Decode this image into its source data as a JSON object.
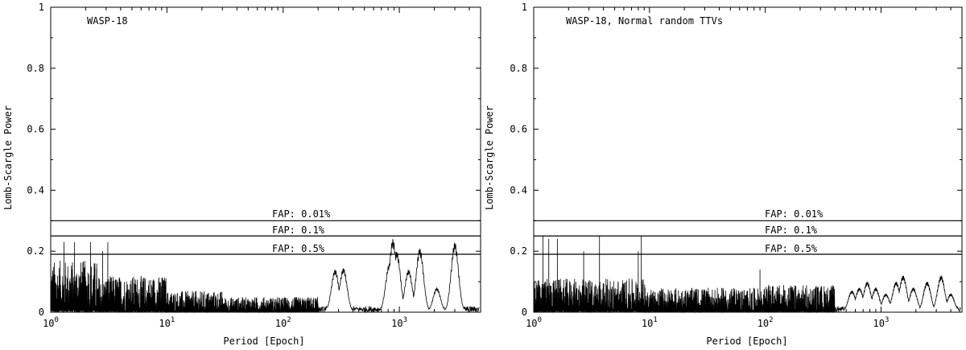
{
  "chart_data": [
    {
      "type": "line",
      "annotation": "WASP-18",
      "xlabel": "Period [Epoch]",
      "ylabel": "Lomb-Scargle Power",
      "xscale": "log",
      "xlim": [
        1,
        5000
      ],
      "ylim": [
        0,
        1
      ],
      "x_ticks": [
        1,
        10,
        100,
        1000
      ],
      "x_tick_labels": [
        {
          "base": "10",
          "exp": "0"
        },
        {
          "base": "10",
          "exp": "1"
        },
        {
          "base": "10",
          "exp": "2"
        },
        {
          "base": "10",
          "exp": "3"
        }
      ],
      "y_ticks": [
        "0",
        "0.2",
        "0.4",
        "0.6",
        "0.8",
        "1"
      ],
      "fap_lines": [
        {
          "label": "FAP: 0.01%",
          "value": 0.3
        },
        {
          "label": "FAP: 0.1%",
          "value": 0.25
        },
        {
          "label": "FAP: 0.5%",
          "value": 0.19
        }
      ],
      "series": [
        {
          "noise_segments": [
            {
              "x_from": 1.0,
              "x_to": 2.5,
              "y_max": 0.17
            },
            {
              "x_from": 2.5,
              "x_to": 10,
              "y_max": 0.12
            },
            {
              "x_from": 10,
              "x_to": 30,
              "y_max": 0.07
            },
            {
              "x_from": 30,
              "x_to": 200,
              "y_max": 0.05
            }
          ],
          "spikes": [
            [
              1.3,
              0.23
            ],
            [
              1.6,
              0.23
            ],
            [
              2.2,
              0.23
            ],
            [
              3.1,
              0.23
            ],
            [
              2.8,
              0.2
            ]
          ],
          "peaks": [
            [
              280,
              0.14
            ],
            [
              330,
              0.145
            ],
            [
              820,
              0.16
            ],
            [
              880,
              0.24
            ],
            [
              950,
              0.2
            ],
            [
              1200,
              0.14
            ],
            [
              1500,
              0.21
            ],
            [
              2100,
              0.08
            ],
            [
              3000,
              0.23
            ]
          ]
        }
      ]
    },
    {
      "type": "line",
      "annotation": "WASP-18, Normal random TTVs",
      "xlabel": "Period [Epoch]",
      "ylabel": "Lomb-Scargle Power",
      "xscale": "log",
      "xlim": [
        1,
        5000
      ],
      "ylim": [
        0,
        1
      ],
      "x_ticks": [
        1,
        10,
        100,
        1000
      ],
      "x_tick_labels": [
        {
          "base": "10",
          "exp": "0"
        },
        {
          "base": "10",
          "exp": "1"
        },
        {
          "base": "10",
          "exp": "2"
        },
        {
          "base": "10",
          "exp": "3"
        }
      ],
      "y_ticks": [
        "0",
        "0.2",
        "0.4",
        "0.6",
        "0.8",
        "1"
      ],
      "fap_lines": [
        {
          "label": "FAP: 0.01%",
          "value": 0.3
        },
        {
          "label": "FAP: 0.1%",
          "value": 0.25
        },
        {
          "label": "FAP: 0.5%",
          "value": 0.19
        }
      ],
      "series": [
        {
          "noise_segments": [
            {
              "x_from": 1.0,
              "x_to": 10,
              "y_max": 0.11
            },
            {
              "x_from": 10,
              "x_to": 100,
              "y_max": 0.08
            },
            {
              "x_from": 100,
              "x_to": 400,
              "y_max": 0.09
            }
          ],
          "spikes": [
            [
              1.2,
              0.25
            ],
            [
              1.35,
              0.24
            ],
            [
              1.6,
              0.24
            ],
            [
              2.7,
              0.2
            ],
            [
              3.7,
              0.25
            ],
            [
              8.5,
              0.25
            ],
            [
              8.0,
              0.2
            ],
            [
              90,
              0.14
            ]
          ],
          "peaks": [
            [
              560,
              0.07
            ],
            [
              650,
              0.08
            ],
            [
              760,
              0.1
            ],
            [
              900,
              0.08
            ],
            [
              1100,
              0.06
            ],
            [
              1350,
              0.1
            ],
            [
              1550,
              0.12
            ],
            [
              1900,
              0.08
            ],
            [
              2500,
              0.1
            ],
            [
              3300,
              0.12
            ],
            [
              4000,
              0.06
            ]
          ]
        }
      ]
    }
  ]
}
